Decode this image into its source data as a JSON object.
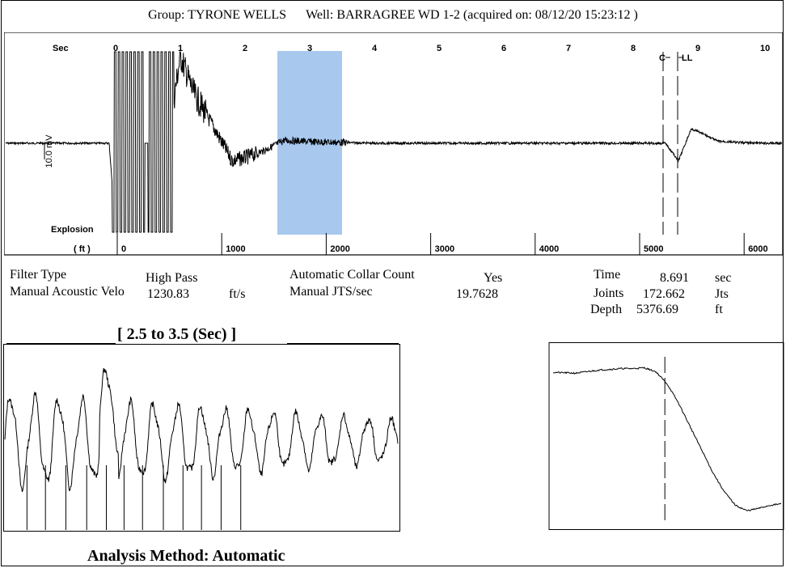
{
  "header": {
    "group": "Group: TYRONE WELLS",
    "well": "Well: BARRAGREE WD 1-2 (acquired on: 08/12/20 15:23:12 )"
  },
  "main_chart": {
    "sec_label": "Sec",
    "ft_label": "( ft )",
    "explosion_label": "Explosion",
    "scale_label": "10.0 mV",
    "sec_ticks": [
      "0",
      "1",
      "2",
      "3",
      "4",
      "5",
      "6",
      "7",
      "8",
      "9",
      "10"
    ],
    "ft_ticks": [
      "0",
      "1000",
      "2000",
      "3000",
      "4000",
      "5000",
      "6000"
    ],
    "marker_c": "C",
    "marker_ll": "LL",
    "highlight_color": "#a8c8ee"
  },
  "params": {
    "filter_type_label": "Filter Type",
    "filter_type_value": "High Pass",
    "manual_acoustic_label": "Manual Acoustic Velo",
    "manual_acoustic_value": "1230.83",
    "manual_acoustic_unit": "ft/s",
    "auto_collar_label": "Automatic Collar Count",
    "auto_collar_value": "Yes",
    "manual_jts_label": "Manual JTS/sec",
    "manual_jts_value": "19.7628",
    "time_label": "Time",
    "time_value": "8.691",
    "time_unit": "sec",
    "joints_label": "Joints",
    "joints_value": "172.662",
    "joints_unit": "Jts",
    "depth_label": "Depth",
    "depth_value": "5376.69",
    "depth_unit": "ft"
  },
  "zoom_title": "[ 2.5  to  3.5 (Sec) ]",
  "analysis_method": "Analysis Method:   Automatic",
  "chart_data": [
    {
      "type": "line",
      "xlabel": "Sec",
      "xlim": [
        -1.7,
        10.3
      ],
      "x_ticks": [
        0,
        1,
        2,
        3,
        4,
        5,
        6,
        7,
        8,
        9,
        10
      ],
      "secondary_xlabel": "( ft )",
      "secondary_ticks": [
        0,
        1000,
        2000,
        3000,
        4000,
        5000,
        6000
      ],
      "highlight_range": [
        2.5,
        3.5
      ],
      "markers": {
        "C": 8.45,
        "LL": 8.69
      },
      "x": [
        -1.7,
        -0.1,
        0.0,
        0.3,
        0.5,
        0.8,
        1.0,
        1.2,
        1.5,
        1.8,
        2.0,
        2.3,
        2.6,
        3.0,
        3.5,
        4.0,
        5.0,
        6.0,
        7.0,
        8.0,
        8.5,
        8.7,
        8.9,
        9.1,
        9.3,
        9.6,
        10.0,
        10.3
      ],
      "y": [
        0,
        0,
        -6,
        6,
        -6,
        0,
        6,
        3.5,
        1.2,
        -1.2,
        -1.0,
        -0.5,
        0.2,
        0.1,
        0.05,
        0,
        0,
        0,
        0,
        0,
        0,
        -1.2,
        1.0,
        0.6,
        0.15,
        0.05,
        0,
        0
      ]
    },
    {
      "type": "line",
      "title": "[ 2.5  to  3.5 (Sec) ]",
      "xlim": [
        2.5,
        3.5
      ],
      "x": [
        2.5,
        2.55,
        2.6,
        2.65,
        2.7,
        2.75,
        2.8,
        2.85,
        2.9,
        2.95,
        3.0,
        3.05,
        3.1,
        3.15,
        3.2,
        3.25,
        3.3,
        3.35,
        3.4,
        3.45,
        3.5
      ],
      "y": [
        0.2,
        0.8,
        -0.6,
        0.9,
        -0.5,
        0.7,
        -0.8,
        1.0,
        -0.7,
        0.8,
        -0.5,
        0.6,
        -0.3,
        0.5,
        -0.4,
        0.4,
        -0.3,
        0.3,
        -0.2,
        0.25,
        -0.1
      ]
    },
    {
      "type": "line",
      "xlim": [
        8.2,
        9.2
      ],
      "marker_x": 8.69,
      "x": [
        8.2,
        8.3,
        8.4,
        8.5,
        8.55,
        8.6,
        8.65,
        8.7,
        8.75,
        8.8,
        8.85,
        8.9,
        8.95,
        9.0,
        9.05,
        9.1,
        9.15,
        9.2
      ],
      "y": [
        0.85,
        0.84,
        0.88,
        0.9,
        0.9,
        0.91,
        0.86,
        0.7,
        0.45,
        0.15,
        -0.15,
        -0.45,
        -0.7,
        -0.88,
        -0.95,
        -0.92,
        -0.88,
        -0.86
      ]
    }
  ]
}
